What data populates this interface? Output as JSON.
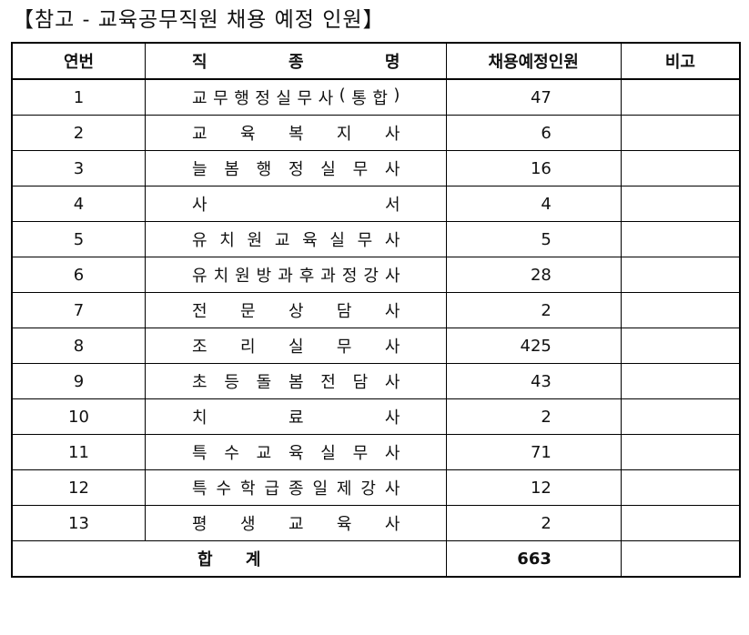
{
  "title": "【참고 - 교육공무직원 채용 예정 인원】",
  "headers": {
    "no": "연번",
    "job": "직 종 명",
    "count": "채용예정인원",
    "note": "비고"
  },
  "rows": [
    {
      "no": "1",
      "job": "교무행정실무사(통합)",
      "count": "47",
      "note": ""
    },
    {
      "no": "2",
      "job": "교 육 복 지 사",
      "count": "6",
      "note": ""
    },
    {
      "no": "3",
      "job": "늘 봄 행 정 실 무 사",
      "count": "16",
      "note": ""
    },
    {
      "no": "4",
      "job": "사 서",
      "count": "4",
      "note": ""
    },
    {
      "no": "5",
      "job": "유 치 원 교 육 실 무 사",
      "count": "5",
      "note": ""
    },
    {
      "no": "6",
      "job": "유치원방과후과정강사",
      "count": "28",
      "note": ""
    },
    {
      "no": "7",
      "job": "전 문 상 담 사",
      "count": "2",
      "note": ""
    },
    {
      "no": "8",
      "job": "조 리 실 무 사",
      "count": "425",
      "note": ""
    },
    {
      "no": "9",
      "job": "초 등 돌 봄 전 담 사",
      "count": "43",
      "note": ""
    },
    {
      "no": "10",
      "job": "치 료 사",
      "count": "2",
      "note": ""
    },
    {
      "no": "11",
      "job": "특 수 교 육 실 무 사",
      "count": "71",
      "note": ""
    },
    {
      "no": "12",
      "job": "특수학급종일제강사",
      "count": "12",
      "note": ""
    },
    {
      "no": "13",
      "job": "평 생 교 육 사",
      "count": "2",
      "note": ""
    }
  ],
  "total": {
    "label": "합 계",
    "count": "663",
    "note": ""
  }
}
